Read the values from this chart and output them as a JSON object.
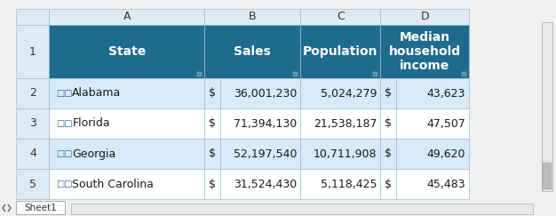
{
  "col_headers": [
    "A",
    "B",
    "C",
    "D"
  ],
  "row_numbers": [
    "",
    "1",
    "2",
    "3",
    "4",
    "5"
  ],
  "header_row": [
    "State",
    "Sales",
    "Population",
    "Median\nhousehold\nincome"
  ],
  "rows": [
    [
      "🗺 Alabama",
      "$",
      "36,001,230",
      "5,024,279",
      "$",
      "43,623"
    ],
    [
      "🗺 Florida",
      "$",
      "71,394,130",
      "21,538,187",
      "$",
      "47,507"
    ],
    [
      "🗺 Georgia",
      "$",
      "52,197,540",
      "10,711,908",
      "$",
      "49,620"
    ],
    [
      "🗺 South Carolina",
      "$",
      "31,524,430",
      "5,118,425",
      "$",
      "45,483"
    ]
  ],
  "states": [
    "Alabama",
    "Florida",
    "Georgia",
    "South Carolina"
  ],
  "sales": [
    "36,001,230",
    "71,394,130",
    "52,197,540",
    "31,524,430"
  ],
  "population": [
    "5,024,279",
    "21,538,187",
    "10,711,908",
    "5,118,425"
  ],
  "income": [
    "43,623",
    "47,507",
    "49,620",
    "45,483"
  ],
  "header_bg": "#1F6B8E",
  "header_text": "#FFFFFF",
  "row_alt1_bg": "#D6EAF8",
  "row_alt2_bg": "#FFFFFF",
  "col_header_bg": "#DDEAF4",
  "col_header_text": "#333333",
  "row_num_bg": "#DDEAF4",
  "row_num_text": "#333333",
  "border_color": "#A0BFD0",
  "cell_text_color": "#1A1A1A",
  "sheet_tab": "Sheet1",
  "outer_bg": "#F0F0F0"
}
